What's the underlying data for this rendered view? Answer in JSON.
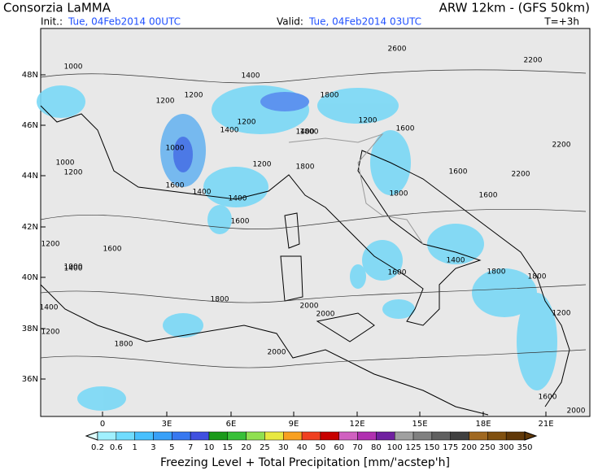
{
  "header": {
    "source": "Consorzia LaMMA",
    "model": "ARW 12km - (GFS 50km)",
    "init_label": "Init.:",
    "init_time": "Tue, 04Feb2014 00UTC",
    "valid_label": "Valid:",
    "valid_time": "Tue, 04Feb2014 03UTC",
    "step": "T=+3h"
  },
  "map": {
    "lat_labels": [
      "48N",
      "46N",
      "44N",
      "42N",
      "40N",
      "38N",
      "36N"
    ],
    "lon_labels": [
      "0",
      "3E",
      "6E",
      "9E",
      "12E",
      "15E",
      "18E",
      "21E"
    ],
    "contour_labels": [
      "1000",
      "1400",
      "2600",
      "2200",
      "1200",
      "1200",
      "1400",
      "1600",
      "1800",
      "1600",
      "1400",
      "1200",
      "1000",
      "1000",
      "1200",
      "1200",
      "1400",
      "1600",
      "1800",
      "1800",
      "1600",
      "1600",
      "1400",
      "1200",
      "1200",
      "1000",
      "1400",
      "1600",
      "1800",
      "1800",
      "1600",
      "1800",
      "2000",
      "2000",
      "2200",
      "2200",
      "1400",
      "1200",
      "1600",
      "2000",
      "1800",
      "1400",
      "1200",
      "1800",
      "2000"
    ]
  },
  "colorbar": {
    "labels": [
      "0.2",
      "0.6",
      "1",
      "3",
      "5",
      "7",
      "10",
      "15",
      "20",
      "25",
      "30",
      "40",
      "50",
      "60",
      "70",
      "80",
      "100",
      "125",
      "150",
      "175",
      "200",
      "250",
      "300",
      "350"
    ],
    "colors": [
      "#a0f0ff",
      "#70dcff",
      "#48c0ff",
      "#38a0f8",
      "#3878f0",
      "#4050e0",
      "#1a9a1a",
      "#38c038",
      "#90e050",
      "#e8e840",
      "#f8a020",
      "#f04020",
      "#c80000",
      "#d060c0",
      "#b030b0",
      "#7020a0",
      "#a0a0a0",
      "#808080",
      "#606060",
      "#404040",
      "#a06820",
      "#805010",
      "#603808"
    ],
    "title": "Freezing Level + Total Precipitation [mm/'acstep'h]"
  }
}
